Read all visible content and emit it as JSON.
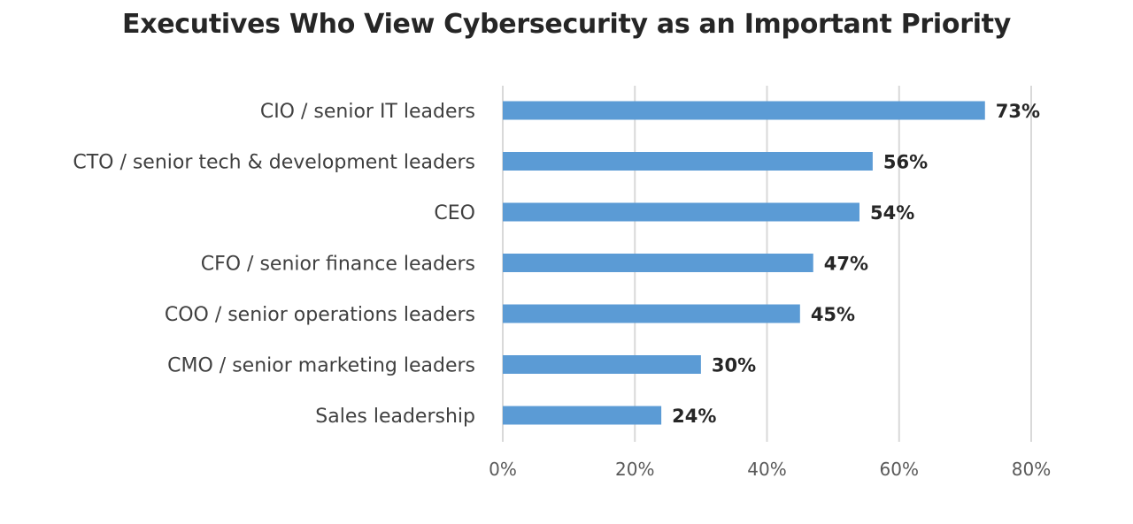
{
  "chart_data": {
    "type": "bar",
    "orientation": "horizontal",
    "title": "Executives Who View Cybersecurity as an Important Priority",
    "categories": [
      "CIO / senior IT leaders",
      "CTO / senior tech & development leaders",
      "CEO",
      "CFO / senior finance leaders",
      "COO / senior operations leaders",
      "CMO / senior marketing leaders",
      "Sales leadership"
    ],
    "values": [
      73,
      56,
      54,
      47,
      45,
      30,
      24
    ],
    "data_labels": [
      "73%",
      "56%",
      "54%",
      "47%",
      "45%",
      "30%",
      "24%"
    ],
    "xlim": [
      0,
      80
    ],
    "x_ticks": [
      0,
      20,
      40,
      60,
      80
    ],
    "x_tick_labels": [
      "0%",
      "20%",
      "40%",
      "60%",
      "80%"
    ],
    "xlabel": "",
    "ylabel": "",
    "grid": "vertical",
    "legend": "none",
    "bar_color": "#5B9BD5"
  }
}
